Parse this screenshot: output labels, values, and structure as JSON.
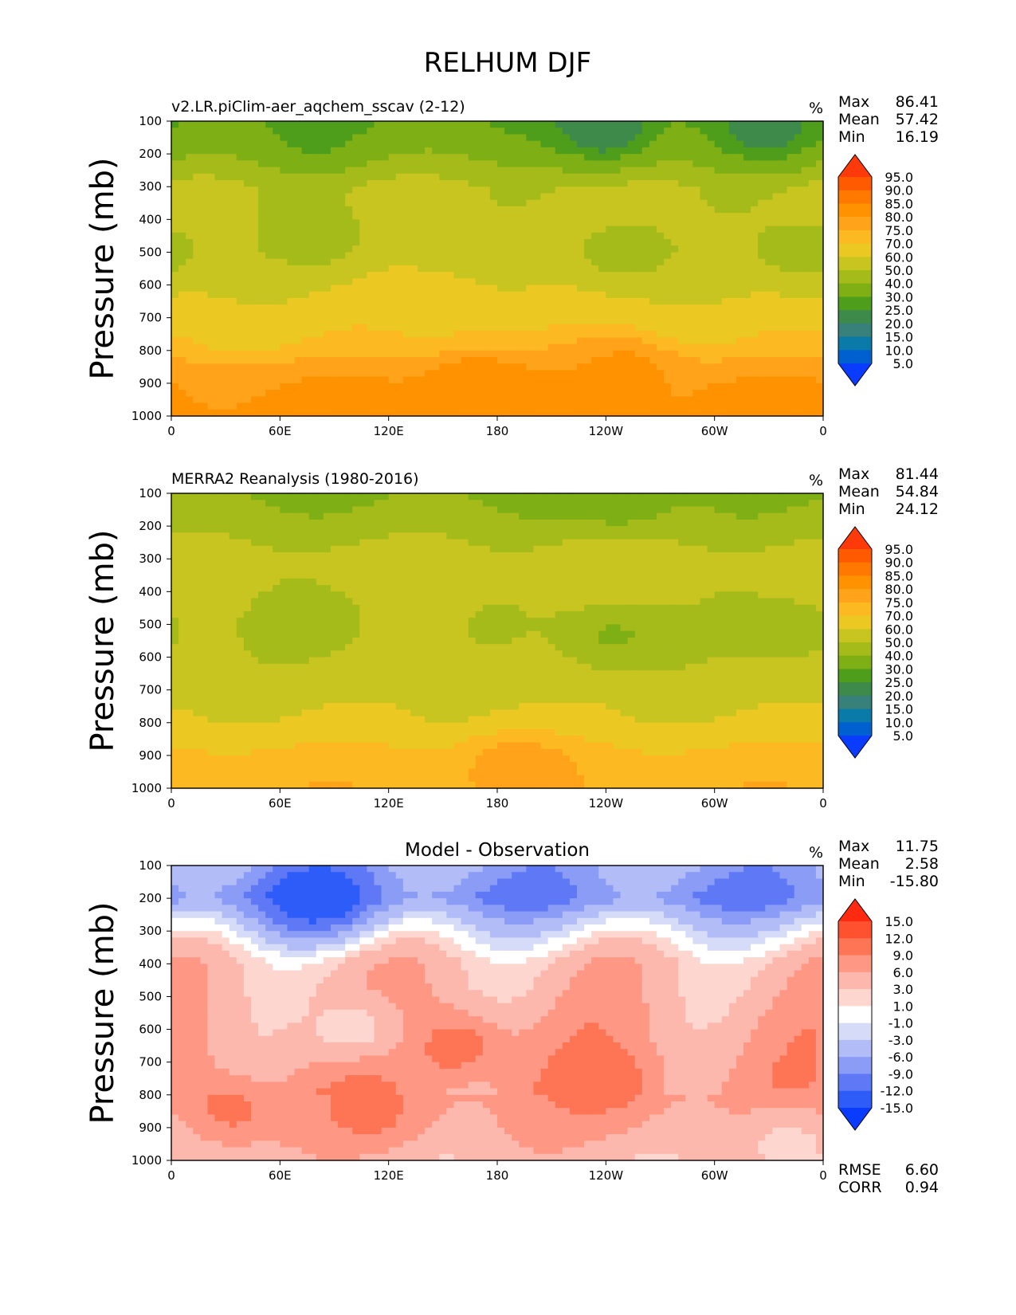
{
  "figure": {
    "title": "RELHUM DJF"
  },
  "chart_data": [
    {
      "type": "contour",
      "panel": "model",
      "title_left": "v2.LR.piClim-aer_aqchem_sscav (2-12)",
      "title_center": "",
      "units": "%",
      "ylabel": "Pressure (mb)",
      "y_ticks": [
        "100",
        "200",
        "300",
        "400",
        "500",
        "600",
        "700",
        "800",
        "900",
        "1000"
      ],
      "x_ticks": [
        "0",
        "60E",
        "120E",
        "180",
        "120W",
        "60W",
        "0"
      ],
      "xlim": [
        0,
        360
      ],
      "ylim": [
        1000,
        100
      ],
      "stats": [
        {
          "label": "Max",
          "value": "86.41"
        },
        {
          "label": "Mean",
          "value": "57.42"
        },
        {
          "label": "Min",
          "value": "16.19"
        }
      ],
      "colorbar": {
        "levels": [
          "95.0",
          "90.0",
          "85.0",
          "80.0",
          "75.0",
          "70.0",
          "60.0",
          "50.0",
          "40.0",
          "30.0",
          "25.0",
          "20.0",
          "15.0",
          "10.0",
          "5.0"
        ],
        "colors": [
          "#ff3a0a",
          "#ff5a00",
          "#ff7800",
          "#ff9200",
          "#ffa41a",
          "#fcb922",
          "#ecc823",
          "#c8c520",
          "#a4bb1a",
          "#7eaf14",
          "#4e9e1c",
          "#3e8a4a",
          "#38807a",
          "#0a7aa8",
          "#0060d0",
          "#0a3cff"
        ]
      },
      "field_bands": [
        {
          "p": 1000,
          "v": 82
        },
        {
          "p": 900,
          "v": 80
        },
        {
          "p": 850,
          "v": 77
        },
        {
          "p": 800,
          "v": 72
        },
        {
          "p": 700,
          "v": 65
        },
        {
          "p": 500,
          "v": 55
        },
        {
          "p": 300,
          "v": 52
        },
        {
          "p": 200,
          "v": 38
        },
        {
          "p": 100,
          "v": 30
        }
      ],
      "field_anomalies": [
        {
          "lon": 165,
          "p": 880,
          "v": 85
        },
        {
          "lon": 250,
          "p": 860,
          "v": 82
        },
        {
          "lon": 240,
          "p": 130,
          "v": 20
        },
        {
          "lon": 330,
          "p": 130,
          "v": 22
        },
        {
          "lon": 80,
          "p": 130,
          "v": 28
        },
        {
          "lon": 80,
          "p": 450,
          "v": 45
        },
        {
          "lon": 250,
          "p": 500,
          "v": 45
        },
        {
          "lon": 350,
          "p": 500,
          "v": 45
        },
        {
          "lon": 150,
          "p": 700,
          "v": 70
        }
      ]
    },
    {
      "type": "contour",
      "panel": "observation",
      "title_left": "MERRA2 Reanalysis (1980-2016)",
      "title_center": "",
      "units": "%",
      "ylabel": "Pressure (mb)",
      "y_ticks": [
        "100",
        "200",
        "300",
        "400",
        "500",
        "600",
        "700",
        "800",
        "900",
        "1000"
      ],
      "x_ticks": [
        "0",
        "60E",
        "120E",
        "180",
        "120W",
        "60W",
        "0"
      ],
      "xlim": [
        0,
        360
      ],
      "ylim": [
        1000,
        100
      ],
      "stats": [
        {
          "label": "Max",
          "value": "81.44"
        },
        {
          "label": "Mean",
          "value": "54.84"
        },
        {
          "label": "Min",
          "value": "24.12"
        }
      ],
      "colorbar": {
        "levels": [
          "95.0",
          "90.0",
          "85.0",
          "80.0",
          "75.0",
          "70.0",
          "60.0",
          "50.0",
          "40.0",
          "30.0",
          "25.0",
          "20.0",
          "15.0",
          "10.0",
          "5.0"
        ],
        "colors": [
          "#ff3a0a",
          "#ff5a00",
          "#ff7800",
          "#ff9200",
          "#ffa41a",
          "#fcb922",
          "#ecc823",
          "#c8c520",
          "#a4bb1a",
          "#7eaf14",
          "#4e9e1c",
          "#3e8a4a",
          "#38807a",
          "#0a7aa8",
          "#0060d0",
          "#0a3cff"
        ]
      },
      "field_bands": [
        {
          "p": 1000,
          "v": 74
        },
        {
          "p": 900,
          "v": 72
        },
        {
          "p": 850,
          "v": 68
        },
        {
          "p": 800,
          "v": 62
        },
        {
          "p": 700,
          "v": 55
        },
        {
          "p": 500,
          "v": 52
        },
        {
          "p": 300,
          "v": 55
        },
        {
          "p": 200,
          "v": 45
        },
        {
          "p": 100,
          "v": 38
        }
      ],
      "field_anomalies": [
        {
          "lon": 190,
          "p": 930,
          "v": 78
        },
        {
          "lon": 245,
          "p": 130,
          "v": 32
        },
        {
          "lon": 245,
          "p": 530,
          "v": 38
        },
        {
          "lon": 80,
          "p": 500,
          "v": 45
        },
        {
          "lon": 340,
          "p": 520,
          "v": 45
        },
        {
          "lon": 240,
          "p": 330,
          "v": 57
        }
      ]
    },
    {
      "type": "contour",
      "panel": "difference",
      "title_left": "",
      "title_center": "Model - Observation",
      "units": "%",
      "ylabel": "Pressure (mb)",
      "y_ticks": [
        "100",
        "200",
        "300",
        "400",
        "500",
        "600",
        "700",
        "800",
        "900",
        "1000"
      ],
      "x_ticks": [
        "0",
        "60E",
        "120E",
        "180",
        "120W",
        "60W",
        "0"
      ],
      "xlim": [
        0,
        360
      ],
      "ylim": [
        1000,
        100
      ],
      "stats": [
        {
          "label": "Max",
          "value": "11.75"
        },
        {
          "label": "Mean",
          "value": "2.58"
        },
        {
          "label": "Min",
          "value": "-15.80"
        }
      ],
      "extra_stats": [
        {
          "label": "RMSE",
          "value": "6.60"
        },
        {
          "label": "CORR",
          "value": "0.94"
        }
      ],
      "colorbar": {
        "levels": [
          "15.0",
          "12.0",
          "9.0",
          "6.0",
          "3.0",
          "1.0",
          "-1.0",
          "-3.0",
          "-6.0",
          "-9.0",
          "-12.0",
          "-15.0"
        ],
        "colors": [
          "#ff2a10",
          "#ff5030",
          "#fd7555",
          "#fe9885",
          "#fdb8ad",
          "#fed6d0",
          "#ffffff",
          "#d6dcf8",
          "#b2bcf6",
          "#8a9cf6",
          "#5e78f6",
          "#2e5cf8",
          "#0a3cff"
        ]
      },
      "field_bands": [
        {
          "p": 1000,
          "v": 4
        },
        {
          "p": 900,
          "v": 6
        },
        {
          "p": 800,
          "v": 7
        },
        {
          "p": 600,
          "v": 6
        },
        {
          "p": 400,
          "v": 4
        },
        {
          "p": 320,
          "v": 0
        },
        {
          "p": 260,
          "v": -4
        },
        {
          "p": 200,
          "v": -9
        },
        {
          "p": 100,
          "v": -6
        }
      ],
      "field_anomalies": [
        {
          "lon": 155,
          "p": 650,
          "v": 11
        },
        {
          "lon": 240,
          "p": 760,
          "v": 11
        },
        {
          "lon": 80,
          "p": 200,
          "v": -15
        },
        {
          "lon": 100,
          "p": 600,
          "v": 1.5
        },
        {
          "lon": 30,
          "p": 850,
          "v": 10
        },
        {
          "lon": 110,
          "p": 850,
          "v": 10
        },
        {
          "lon": 340,
          "p": 950,
          "v": 2
        }
      ]
    }
  ]
}
